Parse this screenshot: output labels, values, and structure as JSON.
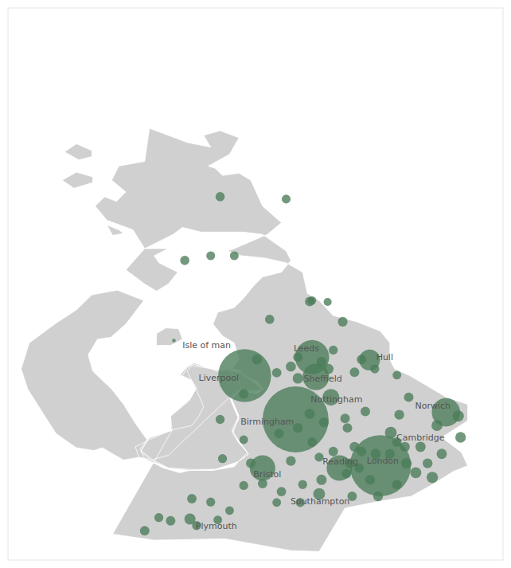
{
  "chart_data": {
    "type": "bubble",
    "xlim": [
      -8,
      2.5
    ],
    "ylim": [
      49.5,
      61.2
    ],
    "tick_labels": false,
    "map": {
      "color": "#d0d0d0",
      "shapes": [
        [
          [
            -6.0,
            51.88
          ],
          [
            -5.55,
            51.62
          ],
          [
            -5.2,
            51.68
          ],
          [
            -5.05,
            52.05
          ],
          [
            -5.3,
            52.4
          ],
          [
            -5.55,
            52.8
          ],
          [
            -5.8,
            53.12
          ],
          [
            -6.2,
            53.5
          ],
          [
            -6.3,
            53.85
          ],
          [
            -6.1,
            54.18
          ],
          [
            -5.82,
            54.22
          ],
          [
            -5.5,
            54.5
          ],
          [
            -5.12,
            55.0
          ],
          [
            -5.68,
            55.22
          ],
          [
            -6.22,
            55.12
          ],
          [
            -6.55,
            54.8
          ],
          [
            -6.98,
            54.52
          ],
          [
            -7.55,
            54.1
          ],
          [
            -7.72,
            53.55
          ],
          [
            -7.58,
            53.12
          ],
          [
            -7.25,
            52.6
          ],
          [
            -6.98,
            52.18
          ],
          [
            -6.55,
            51.88
          ],
          [
            -6.18,
            51.82
          ],
          [
            -6.0,
            51.88
          ]
        ],
        [
          [
            -2.0,
            49.7
          ],
          [
            -1.4,
            49.68
          ],
          [
            -0.85,
            50.6
          ],
          [
            -0.1,
            50.75
          ],
          [
            0.55,
            50.85
          ],
          [
            1.0,
            51.1
          ],
          [
            1.45,
            51.38
          ],
          [
            1.75,
            51.5
          ],
          [
            1.62,
            51.78
          ],
          [
            1.2,
            52.1
          ],
          [
            1.75,
            52.45
          ],
          [
            1.75,
            52.8
          ],
          [
            1.3,
            52.95
          ],
          [
            0.5,
            53.42
          ],
          [
            0.2,
            53.55
          ],
          [
            0.1,
            53.75
          ],
          [
            0.1,
            54.1
          ],
          [
            -0.1,
            54.35
          ],
          [
            -0.6,
            54.55
          ],
          [
            -1.1,
            54.68
          ],
          [
            -1.4,
            55.0
          ],
          [
            -1.65,
            55.15
          ],
          [
            -1.75,
            55.6
          ],
          [
            -2.1,
            55.8
          ],
          [
            -2.55,
            55.9
          ],
          [
            -3.05,
            55.95
          ],
          [
            -3.35,
            56.05
          ],
          [
            -3.2,
            56.1
          ],
          [
            -2.5,
            56.4
          ],
          [
            -2.2,
            56.65
          ],
          [
            -2.6,
            57.0
          ],
          [
            -2.85,
            57.55
          ],
          [
            -3.1,
            57.7
          ],
          [
            -3.45,
            57.65
          ],
          [
            -3.6,
            57.8
          ],
          [
            -3.75,
            57.85
          ],
          [
            -3.3,
            58.1
          ],
          [
            -3.1,
            58.45
          ],
          [
            -3.5,
            58.6
          ],
          [
            -3.85,
            58.5
          ],
          [
            -3.7,
            58.25
          ],
          [
            -4.2,
            58.35
          ],
          [
            -5.0,
            58.65
          ],
          [
            -5.1,
            57.95
          ],
          [
            -5.65,
            57.85
          ],
          [
            -5.8,
            57.55
          ],
          [
            -5.5,
            57.3
          ],
          [
            -5.7,
            57.1
          ],
          [
            -5.95,
            57.2
          ],
          [
            -6.15,
            57.0
          ],
          [
            -5.9,
            56.7
          ],
          [
            -5.35,
            56.5
          ],
          [
            -5.1,
            56.1
          ],
          [
            -5.5,
            55.65
          ],
          [
            -5.1,
            55.35
          ],
          [
            -4.85,
            55.2
          ],
          [
            -4.6,
            55.35
          ],
          [
            -4.4,
            55.6
          ],
          [
            -4.8,
            55.8
          ],
          [
            -4.9,
            55.95
          ],
          [
            -4.6,
            56.1
          ],
          [
            -5.1,
            56.1
          ],
          [
            -4.5,
            56.4
          ],
          [
            -4.3,
            56.55
          ],
          [
            -3.9,
            56.45
          ],
          [
            -3.0,
            56.45
          ],
          [
            -2.6,
            56.4
          ],
          [
            -2.1,
            56.05
          ],
          [
            -2.0,
            55.85
          ],
          [
            -2.2,
            55.6
          ],
          [
            -2.6,
            55.5
          ],
          [
            -2.8,
            55.3
          ],
          [
            -3.0,
            55.05
          ],
          [
            -3.2,
            54.85
          ],
          [
            -3.55,
            54.75
          ],
          [
            -3.65,
            54.5
          ],
          [
            -3.45,
            54.25
          ],
          [
            -3.2,
            54.1
          ],
          [
            -3.1,
            53.75
          ],
          [
            -3.3,
            53.5
          ],
          [
            -3.1,
            53.3
          ],
          [
            -3.05,
            53.1
          ],
          [
            -3.3,
            52.95
          ],
          [
            -3.2,
            52.7
          ],
          [
            -3.1,
            52.5
          ],
          [
            -3.25,
            52.2
          ],
          [
            -3.1,
            52.0
          ],
          [
            -2.9,
            51.75
          ],
          [
            -3.1,
            51.6
          ],
          [
            -3.2,
            51.48
          ],
          [
            -3.65,
            51.4
          ],
          [
            -4.15,
            51.4
          ],
          [
            -4.35,
            51.35
          ],
          [
            -4.7,
            51.45
          ],
          [
            -5.1,
            51.65
          ],
          [
            -5.2,
            51.85
          ],
          [
            -5.0,
            52.1
          ],
          [
            -4.55,
            52.25
          ],
          [
            -4.55,
            52.55
          ],
          [
            -4.15,
            52.9
          ],
          [
            -4.0,
            53.15
          ],
          [
            -4.1,
            53.3
          ],
          [
            -4.35,
            53.42
          ],
          [
            -4.2,
            53.6
          ],
          [
            -4.05,
            53.68
          ],
          [
            -3.55,
            53.5
          ],
          [
            -3.35,
            53.55
          ],
          [
            -3.05,
            53.48
          ],
          [
            -2.9,
            53.35
          ],
          [
            -2.75,
            53.25
          ],
          [
            -2.6,
            53.12
          ],
          [
            -2.7,
            53.1
          ],
          [
            -3.1,
            53.1
          ],
          [
            -3.3,
            52.95
          ],
          [
            -4.6,
            51.72
          ],
          [
            -4.95,
            51.62
          ],
          [
            -5.22,
            51.68
          ],
          [
            -5.3,
            51.9
          ],
          [
            -5.0,
            52.05
          ],
          [
            -4.55,
            52.25
          ],
          [
            -4.1,
            52.35
          ],
          [
            -3.95,
            52.55
          ],
          [
            -3.85,
            52.75
          ],
          [
            -4.0,
            53.1
          ],
          [
            -4.1,
            53.3
          ],
          [
            -4.2,
            53.5
          ],
          [
            -4.1,
            53.62
          ],
          [
            -3.65,
            53.55
          ],
          [
            -3.45,
            53.52
          ],
          [
            -3.35,
            53.55
          ],
          [
            -3.2,
            53.55
          ],
          [
            -3.05,
            53.5
          ],
          [
            -2.95,
            53.38
          ],
          [
            -2.72,
            53.3
          ],
          [
            -2.58,
            53.12
          ],
          [
            -2.72,
            53.02
          ],
          [
            -3.08,
            53.1
          ],
          [
            -3.25,
            52.9
          ],
          [
            -3.1,
            52.55
          ],
          [
            -3.25,
            52.25
          ],
          [
            -3.1,
            52.02
          ],
          [
            -2.92,
            51.78
          ],
          [
            -3.12,
            51.58
          ],
          [
            -3.6,
            51.42
          ],
          [
            -4.15,
            51.4
          ],
          [
            -4.6,
            51.45
          ],
          [
            -4.95,
            51.6
          ],
          [
            -5.18,
            51.8
          ],
          [
            -5.02,
            52.08
          ],
          [
            -4.52,
            52.25
          ],
          [
            -4.55,
            52.55
          ],
          [
            -4.15,
            52.88
          ],
          [
            -4.02,
            53.12
          ],
          [
            -4.12,
            53.32
          ],
          [
            -4.3,
            53.4
          ],
          [
            -4.2,
            53.58
          ],
          [
            -4.06,
            53.65
          ],
          [
            -3.58,
            53.52
          ],
          [
            -3.38,
            53.52
          ],
          [
            -3.12,
            53.48
          ],
          [
            -2.9,
            53.35
          ],
          [
            -2.75,
            53.22
          ],
          [
            -2.62,
            53.1
          ],
          [
            -2.7,
            53.08
          ],
          [
            -3.12,
            53.08
          ],
          [
            -3.28,
            52.92
          ],
          [
            -3.12,
            52.52
          ],
          [
            -3.22,
            52.22
          ],
          [
            -3.12,
            52.0
          ],
          [
            -2.9,
            51.75
          ],
          [
            -3.12,
            51.58
          ],
          [
            -3.58,
            51.42
          ],
          [
            -4.12,
            51.42
          ],
          [
            -4.6,
            51.45
          ],
          [
            -4.92,
            51.62
          ],
          [
            -5.18,
            51.82
          ],
          [
            -5.0,
            52.1
          ],
          [
            -4.52,
            52.25
          ],
          [
            -5.78,
            50.05
          ],
          [
            -4.9,
            49.92
          ],
          [
            -3.4,
            49.95
          ],
          [
            -2.0,
            49.7
          ]
        ],
        [
          [
            -4.85,
            54.05
          ],
          [
            -4.55,
            54.05
          ],
          [
            -4.3,
            54.18
          ],
          [
            -4.38,
            54.4
          ],
          [
            -4.65,
            54.42
          ],
          [
            -4.85,
            54.3
          ],
          [
            -4.85,
            54.05
          ]
        ],
        [
          [
            -6.2,
            57.62
          ],
          [
            -6.55,
            57.72
          ],
          [
            -6.85,
            57.55
          ],
          [
            -6.6,
            57.38
          ],
          [
            -6.2,
            57.5
          ],
          [
            -6.2,
            57.62
          ]
        ],
        [
          [
            -6.22,
            58.18
          ],
          [
            -6.55,
            58.32
          ],
          [
            -6.8,
            58.15
          ],
          [
            -6.5,
            57.98
          ],
          [
            -6.22,
            58.05
          ],
          [
            -6.22,
            58.18
          ]
        ],
        [
          [
            -5.65,
            56.5
          ],
          [
            -5.9,
            56.6
          ],
          [
            -5.78,
            56.38
          ],
          [
            -5.55,
            56.42
          ],
          [
            -5.65,
            56.5
          ]
        ]
      ]
    },
    "series": [
      {
        "color": "#4a7c59",
        "x": [
          -3.5,
          -2.1,
          -4.25,
          -3.7,
          -3.2,
          -2.45,
          -1.55,
          -1.22,
          -0.9,
          -2.72,
          -2.3,
          -1.85,
          -2.0,
          -1.6,
          -1.1,
          -1.35,
          -1.2,
          -1.85,
          -0.65,
          -0.5,
          -0.22,
          0.25,
          0.5,
          1.1,
          1.55,
          1.6,
          1.2,
          0.9,
          0.45,
          0.65,
          1.0,
          -0.75,
          -0.55,
          -1.35,
          -2.0,
          -2.85,
          -3.45,
          -3.7,
          -3.3,
          -4.8,
          -5.1,
          -2.3,
          -1.8,
          -0.7,
          -0.15,
          0.25,
          -3.0,
          -3.5,
          -3.0,
          -1.85,
          -2.25,
          -0.85,
          -0.42,
          0.3,
          -1.55,
          -0.65,
          -0.2,
          0.1,
          -1.1,
          -1.4,
          -0.82,
          -0.32,
          -1.75,
          -2.2,
          -2.6,
          -3.0,
          -4.1,
          -3.55,
          -4.0,
          -4.55,
          -1.6,
          -1.3,
          -0.8,
          0.75,
          0.42,
          -0.5,
          0.25
        ],
        "values": [
          57.2,
          57.15,
          55.85,
          55.95,
          55.95,
          54.6,
          55.0,
          54.97,
          54.55,
          53.75,
          53.47,
          53.8,
          53.6,
          54.98,
          53.95,
          53.7,
          53.55,
          53.35,
          53.48,
          53.75,
          53.55,
          53.42,
          52.95,
          52.35,
          52.55,
          52.1,
          51.75,
          51.55,
          51.55,
          51.35,
          51.25,
          51.55,
          51.45,
          51.2,
          51.6,
          51.55,
          51.65,
          50.73,
          50.55,
          50.4,
          50.12,
          50.72,
          50.72,
          50.85,
          50.85,
          51.1,
          53.02,
          52.48,
          52.05,
          52.3,
          52.18,
          52.5,
          52.65,
          52.58,
          52.0,
          51.9,
          51.75,
          51.75,
          51.8,
          51.68,
          51.33,
          51.2,
          51.1,
          50.95,
          51.12,
          51.08,
          50.8,
          50.35,
          50.23,
          50.33,
          52.6,
          52.42,
          52.3,
          51.9,
          51.9,
          51.8,
          52.0
        ],
        "sizes": [
          55,
          50,
          55,
          50,
          50,
          55,
          45,
          42,
          60,
          62,
          58,
          58,
          65,
          58,
          52,
          62,
          65,
          72,
          58,
          58,
          52,
          48,
          58,
          78,
          82,
          72,
          68,
          62,
          72,
          78,
          82,
          62,
          58,
          68,
          62,
          58,
          52,
          52,
          48,
          52,
          58,
          48,
          52,
          58,
          62,
          58,
          58,
          52,
          48,
          62,
          58,
          58,
          58,
          62,
          58,
          62,
          68,
          62,
          58,
          52,
          58,
          62,
          52,
          58,
          58,
          52,
          58,
          48,
          52,
          58,
          68,
          62,
          58,
          68,
          62,
          58,
          58
        ]
      },
      {
        "color": "#4a7c59",
        "labels": [
          "Birmingham",
          "London",
          "Liverpool",
          "Leeds",
          "Sheffield",
          "Nottingham",
          "Bristol",
          "Reading",
          "Norwich",
          "Cambridge",
          "Southampton",
          "Plymouth",
          "Hull",
          "Isle of man"
        ],
        "x": [
          -1.9,
          -0.1,
          -2.98,
          -1.55,
          -1.47,
          -1.15,
          -2.6,
          -0.97,
          1.29,
          0.12,
          -1.4,
          -4.14,
          -0.33,
          -4.48
        ],
        "values": [
          52.48,
          51.5,
          53.41,
          53.8,
          53.38,
          52.95,
          51.45,
          51.45,
          52.63,
          52.2,
          50.9,
          50.37,
          53.74,
          54.15
        ],
        "sizes": [
          2800,
          2400,
          1800,
          750,
          450,
          180,
          420,
          420,
          520,
          90,
          90,
          80,
          280,
          8
        ]
      }
    ]
  }
}
